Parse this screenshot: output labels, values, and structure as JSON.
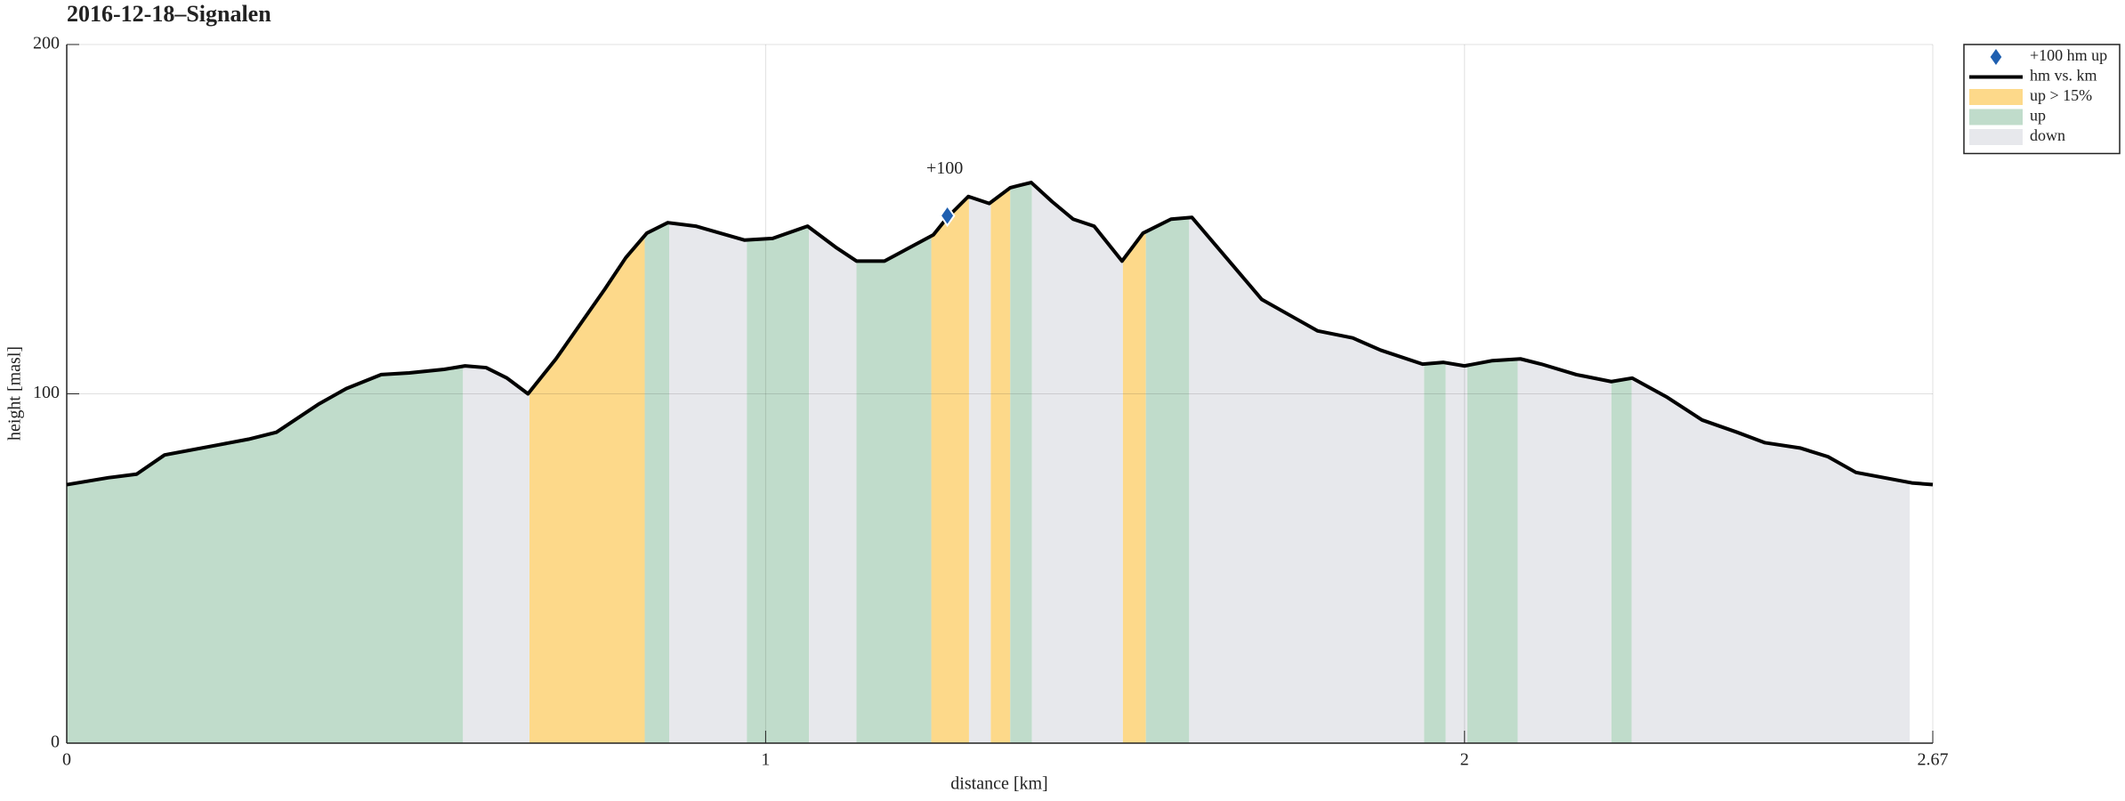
{
  "chart_data": {
    "type": "profile",
    "title": "2016-12-18–Signalen",
    "xlabel": "distance [km]",
    "ylabel": "height [masl]",
    "xlim": [
      0,
      2.67
    ],
    "ylim": [
      0,
      200
    ],
    "xticks": [
      0,
      1,
      2,
      2.67
    ],
    "yticks": [
      0,
      100,
      200
    ],
    "grid": true,
    "legend": "upper right outside",
    "series": [
      {
        "name": "+100 hm up",
        "type": "scatter",
        "color": "#1f5fb0",
        "x": [
          1.26
        ],
        "values": [
          151
        ],
        "value_labels": [
          "+100"
        ]
      },
      {
        "name": "hm vs. km",
        "type": "line",
        "color": "#000000",
        "x": [
          0,
          0.06,
          0.1,
          0.14,
          0.22,
          0.26,
          0.3,
          0.36,
          0.4,
          0.45,
          0.49,
          0.54,
          0.57,
          0.6,
          0.63,
          0.66,
          0.7,
          0.77,
          0.8,
          0.83,
          0.86,
          0.9,
          0.97,
          1.01,
          1.06,
          1.1,
          1.13,
          1.17,
          1.24,
          1.26,
          1.29,
          1.32,
          1.35,
          1.38,
          1.41,
          1.44,
          1.47,
          1.51,
          1.54,
          1.58,
          1.61,
          1.71,
          1.75,
          1.79,
          1.84,
          1.88,
          1.94,
          1.97,
          2.0,
          2.04,
          2.08,
          2.11,
          2.16,
          2.21,
          2.24,
          2.29,
          2.34,
          2.39,
          2.43,
          2.48,
          2.52,
          2.56,
          2.6,
          2.64,
          2.67
        ],
        "values": [
          74,
          76,
          77,
          82.5,
          85.5,
          87,
          89,
          97,
          101.5,
          105.5,
          106,
          107,
          108,
          107.5,
          104.5,
          100,
          110,
          130,
          139,
          146,
          149,
          148,
          144,
          144.5,
          148,
          142,
          138,
          138,
          145.5,
          150.5,
          156.5,
          154.5,
          159,
          160.5,
          155,
          150,
          148,
          138,
          146,
          150,
          150.5,
          127,
          122.5,
          118,
          116,
          112.5,
          108.5,
          109,
          108,
          109.5,
          110,
          108.5,
          105.5,
          103.5,
          104.5,
          99,
          92.5,
          89,
          86,
          84.5,
          82,
          77.5,
          76,
          74.5,
          74
        ]
      },
      {
        "name": "up > 15%",
        "type": "area",
        "color": "#fdd98a",
        "spans": [
          [
            0.662,
            0.827
          ],
          [
            1.237,
            1.291
          ],
          [
            1.322,
            1.35
          ],
          [
            1.511,
            1.544
          ]
        ]
      },
      {
        "name": "up",
        "type": "area",
        "color": "#c0dccb",
        "spans": [
          [
            0,
            0.567
          ],
          [
            0.827,
            0.862
          ],
          [
            0.973,
            1.062
          ],
          [
            1.13,
            1.237
          ],
          [
            1.35,
            1.381
          ],
          [
            1.544,
            1.606
          ],
          [
            1.942,
            1.973
          ],
          [
            2.004,
            2.076
          ],
          [
            2.21,
            2.239
          ]
        ]
      },
      {
        "name": "down",
        "type": "area",
        "color": "#e7e8ec",
        "spans": [
          [
            0.567,
            0.662
          ],
          [
            0.862,
            0.973
          ],
          [
            1.062,
            1.13
          ],
          [
            1.291,
            1.322
          ],
          [
            1.381,
            1.511
          ],
          [
            1.606,
            1.942
          ],
          [
            1.973,
            2.004
          ],
          [
            2.076,
            2.21
          ],
          [
            2.239,
            2.637
          ]
        ]
      }
    ]
  }
}
